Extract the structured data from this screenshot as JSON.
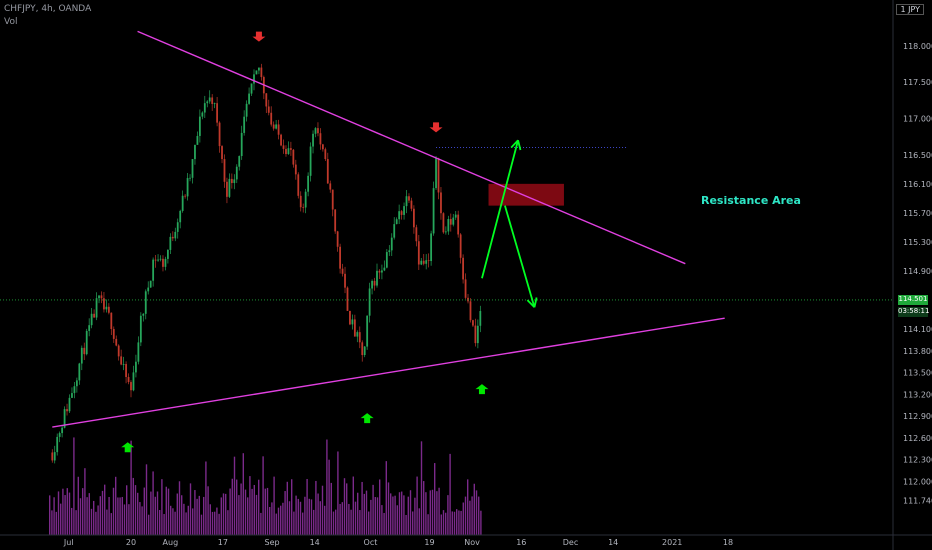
{
  "header": {
    "symbol_line": "CHFJPY, 4h, OANDA",
    "volume_label": "Vol",
    "currency_badge": "JPY",
    "currency_badge_prefix": "1"
  },
  "price_labels": {
    "last_price": "114.501",
    "countdown": "03:58:11"
  },
  "annotations": {
    "resistance_label": "Resistance Area"
  },
  "colors": {
    "background": "#000000",
    "trendline": "#e040e0",
    "up_arrow": "#00e600",
    "down_arrow": "#e63030",
    "zone": "#8b0a14",
    "candle_up": "#26a65b",
    "candle_down": "#c0392b",
    "volume": "#7b2a8a",
    "last_price": "#1fa83a",
    "label_text": "#2ee6c6"
  },
  "chart_data": {
    "type": "candlestick",
    "title": "CHFJPY, 4h, OANDA",
    "ylabel": "",
    "xlabel": "",
    "ylim": [
      111.5,
      118.35
    ],
    "y_ticks": [
      "118.000",
      "117.500",
      "117.000",
      "116.500",
      "116.100",
      "115.700",
      "115.300",
      "114.900",
      "114.100",
      "113.800",
      "113.500",
      "113.200",
      "112.900",
      "112.600",
      "112.300",
      "112.000",
      "111.740"
    ],
    "x_ticks": [
      "Jul",
      "20",
      "Aug",
      "17",
      "Sep",
      "14",
      "Oct",
      "19",
      "Nov",
      "16",
      "Dec",
      "14",
      "2021",
      "18"
    ],
    "price_path": [
      {
        "t": "2020-06-26",
        "v": 112.4
      },
      {
        "t": "2020-07-01",
        "v": 113.1
      },
      {
        "t": "2020-07-06",
        "v": 113.9
      },
      {
        "t": "2020-07-10",
        "v": 114.5
      },
      {
        "t": "2020-07-14",
        "v": 114.2
      },
      {
        "t": "2020-07-17",
        "v": 113.6
      },
      {
        "t": "2020-07-20",
        "v": 113.25
      },
      {
        "t": "2020-07-23",
        "v": 114.2
      },
      {
        "t": "2020-07-27",
        "v": 115.1
      },
      {
        "t": "2020-07-30",
        "v": 115.0
      },
      {
        "t": "2020-08-03",
        "v": 115.6
      },
      {
        "t": "2020-08-07",
        "v": 116.2
      },
      {
        "t": "2020-08-11",
        "v": 117.2
      },
      {
        "t": "2020-08-14",
        "v": 117.3
      },
      {
        "t": "2020-08-18",
        "v": 116.0
      },
      {
        "t": "2020-08-21",
        "v": 116.3
      },
      {
        "t": "2020-08-25",
        "v": 117.3
      },
      {
        "t": "2020-08-28",
        "v": 117.7
      },
      {
        "t": "2020-09-01",
        "v": 116.9
      },
      {
        "t": "2020-09-07",
        "v": 116.5
      },
      {
        "t": "2020-09-10",
        "v": 115.6
      },
      {
        "t": "2020-09-14",
        "v": 117.0
      },
      {
        "t": "2020-09-18",
        "v": 116.2
      },
      {
        "t": "2020-09-22",
        "v": 114.9
      },
      {
        "t": "2020-09-25",
        "v": 114.2
      },
      {
        "t": "2020-09-29",
        "v": 113.7
      },
      {
        "t": "2020-10-01",
        "v": 114.7
      },
      {
        "t": "2020-10-05",
        "v": 115.0
      },
      {
        "t": "2020-10-09",
        "v": 115.6
      },
      {
        "t": "2020-10-13",
        "v": 116.0
      },
      {
        "t": "2020-10-16",
        "v": 115.0
      },
      {
        "t": "2020-10-19",
        "v": 115.0
      },
      {
        "t": "2020-10-21",
        "v": 116.5
      },
      {
        "t": "2020-10-23",
        "v": 115.4
      },
      {
        "t": "2020-10-27",
        "v": 115.7
      },
      {
        "t": "2020-10-30",
        "v": 114.6
      },
      {
        "t": "2020-11-02",
        "v": 113.9
      },
      {
        "t": "2020-11-04",
        "v": 114.5
      }
    ],
    "last_price": 114.501,
    "trendlines": [
      {
        "name": "descending resistance",
        "from": {
          "t": "2020-07-22",
          "v": 118.2
        },
        "to": {
          "t": "2021-01-05",
          "v": 115.0
        }
      },
      {
        "name": "ascending support",
        "from": {
          "t": "2020-06-26",
          "v": 112.75
        },
        "to": {
          "t": "2021-01-17",
          "v": 114.25
        }
      }
    ],
    "resistance_zone": {
      "from": "2020-11-06",
      "to": "2020-11-29",
      "top": 116.1,
      "bottom": 115.8
    },
    "swing_high_level": {
      "value": 116.6,
      "from": "2020-10-21",
      "to": "2020-12-18"
    },
    "projection": [
      {
        "t": "2020-11-04",
        "v": 114.8
      },
      {
        "t": "2020-11-15",
        "v": 116.7
      },
      {
        "t": "2020-11-11",
        "v": 115.8
      },
      {
        "t": "2020-11-20",
        "v": 114.4
      }
    ],
    "markers": [
      {
        "type": "down",
        "t": "2020-08-28",
        "v": 118.1
      },
      {
        "type": "down",
        "t": "2020-10-21",
        "v": 116.85
      },
      {
        "type": "up",
        "t": "2020-07-19",
        "v": 112.5
      },
      {
        "type": "up",
        "t": "2020-09-30",
        "v": 112.9
      },
      {
        "type": "up",
        "t": "2020-11-04",
        "v": 113.3
      }
    ],
    "grid": false,
    "legend": "none"
  }
}
